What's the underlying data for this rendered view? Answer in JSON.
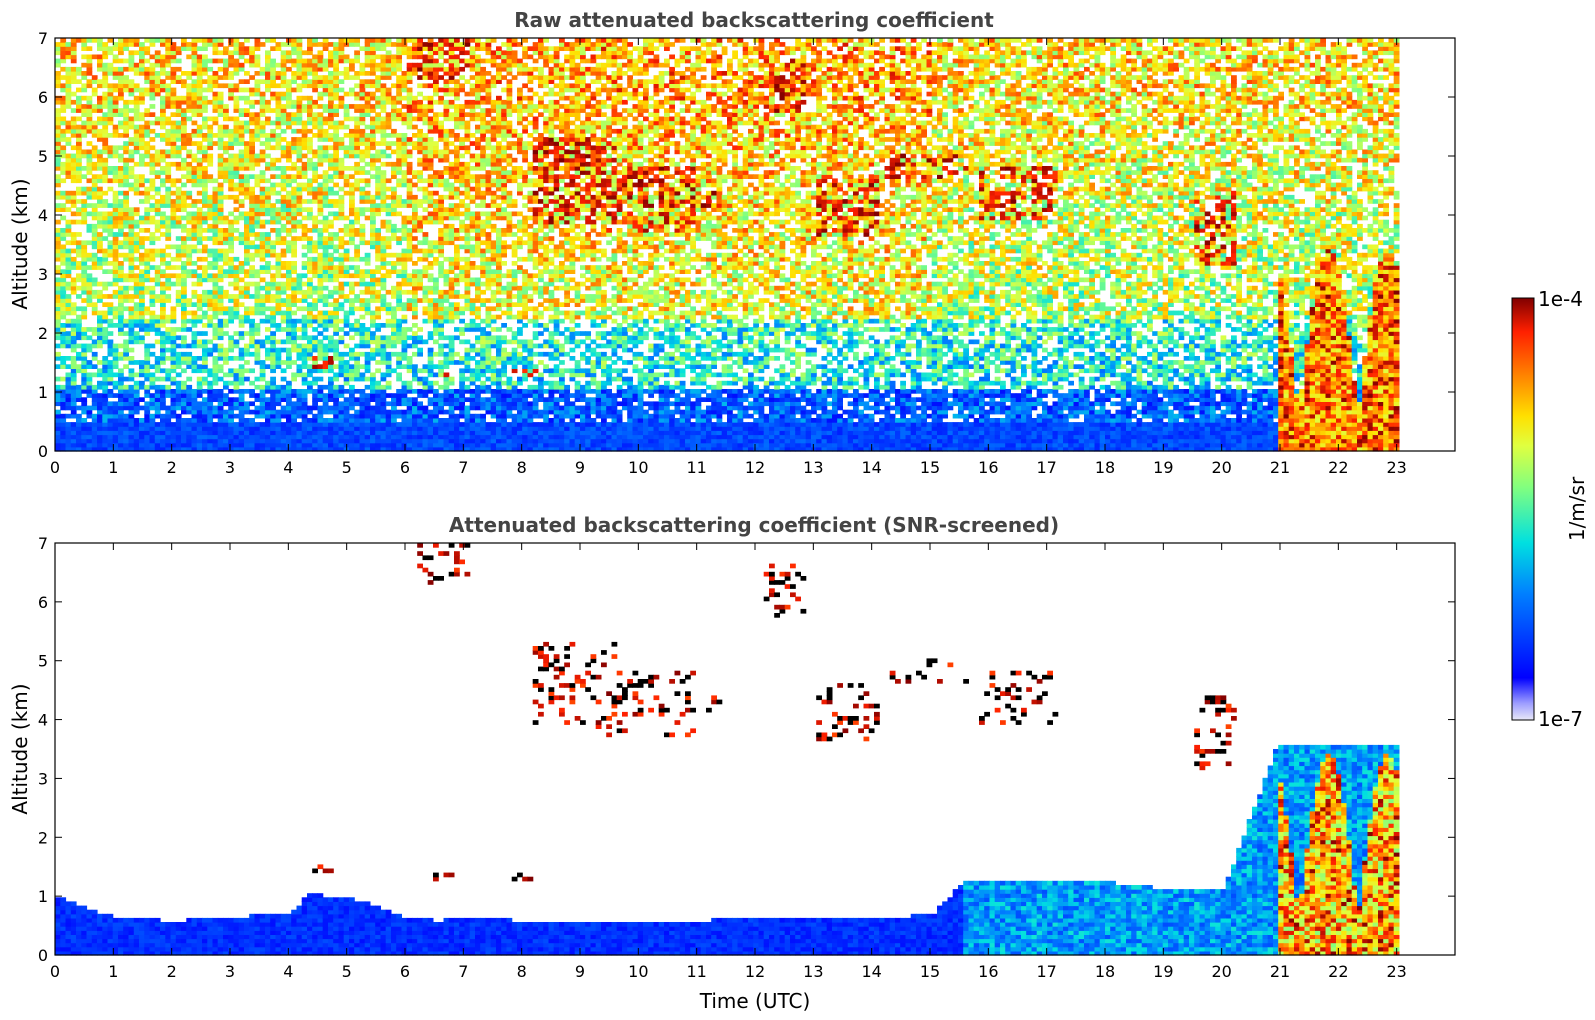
{
  "chart_data": [
    {
      "type": "heatmap",
      "title": "Raw attenuated backscattering coefficient",
      "xlabel": "",
      "ylabel": "Altitude (km)",
      "xlim": [
        0,
        24
      ],
      "ylim": [
        0,
        7
      ],
      "x_ticks": [
        "0",
        "1",
        "2",
        "3",
        "4",
        "5",
        "6",
        "7",
        "8",
        "9",
        "10",
        "11",
        "12",
        "13",
        "14",
        "15",
        "16",
        "17",
        "18",
        "19",
        "20",
        "21",
        "22",
        "23"
      ],
      "y_ticks": [
        "0",
        "1",
        "2",
        "3",
        "4",
        "5",
        "6",
        "7"
      ],
      "data_end_time": 23,
      "grid": false,
      "screened": false,
      "features": [
        {
          "kind": "cloud",
          "t": [
            6.2,
            7.1
          ],
          "alt": [
            6.3,
            7.0
          ]
        },
        {
          "kind": "cloud",
          "t": [
            8.1,
            9.6
          ],
          "alt": [
            3.8,
            5.3
          ]
        },
        {
          "kind": "cloud",
          "t": [
            9.3,
            10.9
          ],
          "alt": [
            3.7,
            4.8
          ]
        },
        {
          "kind": "cloud",
          "t": [
            11.0,
            11.4
          ],
          "alt": [
            4.1,
            4.4
          ]
        },
        {
          "kind": "cloud",
          "t": [
            12.1,
            12.8
          ],
          "alt": [
            5.7,
            6.6
          ]
        },
        {
          "kind": "cloud",
          "t": [
            13.0,
            14.1
          ],
          "alt": [
            3.6,
            4.6
          ]
        },
        {
          "kind": "cloud",
          "t": [
            14.2,
            15.6
          ],
          "alt": [
            4.6,
            5.0
          ]
        },
        {
          "kind": "cloud",
          "t": [
            15.8,
            17.1
          ],
          "alt": [
            3.9,
            4.8
          ]
        },
        {
          "kind": "cloud",
          "t": [
            19.5,
            20.2
          ],
          "alt": [
            3.1,
            4.4
          ]
        },
        {
          "kind": "cloud",
          "t": [
            4.3,
            4.7
          ],
          "alt": [
            1.4,
            1.6
          ]
        },
        {
          "kind": "cloud",
          "t": [
            6.4,
            6.8
          ],
          "alt": [
            1.2,
            1.4
          ]
        },
        {
          "kind": "cloud",
          "t": [
            7.8,
            8.2
          ],
          "alt": [
            1.2,
            1.35
          ]
        },
        {
          "kind": "aerosol",
          "t": [
            20.9,
            23.0
          ],
          "alt": [
            0.0,
            3.6
          ]
        }
      ]
    },
    {
      "type": "heatmap",
      "title": "Attenuated backscattering coefficient (SNR-screened)",
      "xlabel": "Time (UTC)",
      "ylabel": "Altitude (km)",
      "xlim": [
        0,
        24
      ],
      "ylim": [
        0,
        7
      ],
      "x_ticks": [
        "0",
        "1",
        "2",
        "3",
        "4",
        "5",
        "6",
        "7",
        "8",
        "9",
        "10",
        "11",
        "12",
        "13",
        "14",
        "15",
        "16",
        "17",
        "18",
        "19",
        "20",
        "21",
        "22",
        "23"
      ],
      "y_ticks": [
        "0",
        "1",
        "2",
        "3",
        "4",
        "5",
        "6",
        "7"
      ],
      "data_end_time": 23,
      "grid": false,
      "screened": true,
      "boundary_layer_top_km": [
        [
          0,
          0.95
        ],
        [
          1,
          0.6
        ],
        [
          2,
          0.55
        ],
        [
          3,
          0.6
        ],
        [
          4,
          0.7
        ],
        [
          4.3,
          1.0
        ],
        [
          5,
          0.95
        ],
        [
          6,
          0.6
        ],
        [
          6.5,
          0.55
        ],
        [
          7,
          0.6
        ],
        [
          8,
          0.55
        ],
        [
          9,
          0.5
        ],
        [
          10,
          0.55
        ],
        [
          11,
          0.55
        ],
        [
          12,
          0.6
        ],
        [
          13,
          0.6
        ],
        [
          14,
          0.6
        ],
        [
          15,
          0.65
        ],
        [
          15.5,
          1.2
        ],
        [
          16,
          1.2
        ],
        [
          17,
          1.25
        ],
        [
          18,
          1.2
        ],
        [
          19,
          1.1
        ],
        [
          20,
          1.1
        ],
        [
          20.9,
          3.5
        ],
        [
          23,
          3.5
        ]
      ]
    }
  ],
  "colorbar": {
    "label": "1/m/sr",
    "max_label": "1e-4",
    "min_label": "1e-7",
    "scale": "log",
    "colormap": "jet-like",
    "range": [
      1e-07,
      0.0001
    ]
  }
}
